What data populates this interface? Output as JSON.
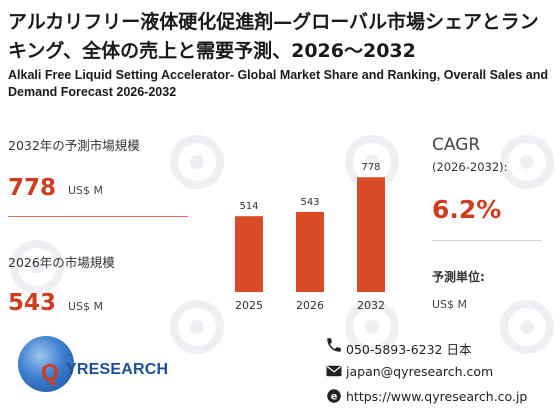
{
  "title_jp": "アルカリフリー液体硬化促進剤—グローバル市場シェアとランキング、全体の売上と需要予測、2026～2032",
  "title_en": "Alkali Free Liquid Setting Accelerator- Global Market Share and Ranking, Overall Sales and Demand Forecast 2026-2032",
  "left_panel": {
    "forecast_label": "2032年の予測市場規模",
    "forecast_value": "778",
    "forecast_unit": "US$ M",
    "current_label": "2026年の市場規模",
    "current_value": "543",
    "current_unit": "US$ M"
  },
  "right_panel": {
    "cagr_title": "CAGR",
    "cagr_period": "(2026-2032):",
    "cagr_value": "6.2%",
    "unit_label": "予測単位:",
    "unit_value": "US$ M"
  },
  "colors": {
    "accent": "#cf3d1d",
    "bar": "#d94c26",
    "brand_blue": "#1d4f97"
  },
  "chart_data": {
    "type": "bar",
    "categories": [
      "2025",
      "2026",
      "2032"
    ],
    "values": [
      514,
      543,
      778
    ],
    "data_labels": [
      "514",
      "543",
      "778"
    ],
    "title": "",
    "xlabel": "",
    "ylabel": "",
    "ylim": [
      0,
      800
    ],
    "grid": false,
    "legend": "none"
  },
  "contact": {
    "phone": "050-5893-6232 日本",
    "email": "japan@qyresearch.com",
    "website": "https://www.qyresearch.co.jp"
  },
  "logo": {
    "mark": "Q",
    "text": "YRESEARCH"
  },
  "icons": {
    "phone": "phone-icon",
    "email": "email-icon",
    "website": "website-icon"
  }
}
